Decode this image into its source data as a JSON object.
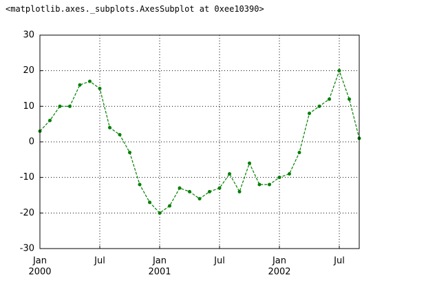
{
  "output_text": "<matplotlib.axes._subplots.AxesSubplot at 0xee10390>",
  "chart_data": {
    "type": "line",
    "x": [
      "2000-01",
      "2000-02",
      "2000-03",
      "2000-04",
      "2000-05",
      "2000-06",
      "2000-07",
      "2000-08",
      "2000-09",
      "2000-10",
      "2000-11",
      "2000-12",
      "2001-01",
      "2001-02",
      "2001-03",
      "2001-04",
      "2001-05",
      "2001-06",
      "2001-07",
      "2001-08",
      "2001-09",
      "2001-10",
      "2001-11",
      "2001-12",
      "2002-01",
      "2002-02",
      "2002-03",
      "2002-04",
      "2002-05",
      "2002-06",
      "2002-07",
      "2002-08",
      "2002-09"
    ],
    "values": [
      3,
      6,
      10,
      10,
      16,
      17,
      15,
      4,
      2,
      -3,
      -12,
      -17,
      -20,
      -18,
      -13,
      -14,
      -16,
      -14,
      -13,
      -9,
      -14,
      -6,
      -12,
      -12,
      -10,
      -9,
      -3,
      8,
      10,
      12,
      20,
      12,
      1
    ],
    "color": "#007f00",
    "xlim": [
      "2000-01",
      "2002-09"
    ],
    "xticks": [
      {
        "value": "2000-01",
        "label": "Jan",
        "year": "2000"
      },
      {
        "value": "2000-07",
        "label": "Jul"
      },
      {
        "value": "2001-01",
        "label": "Jan",
        "year": "2001"
      },
      {
        "value": "2001-07",
        "label": "Jul"
      },
      {
        "value": "2002-01",
        "label": "Jan",
        "year": "2002"
      },
      {
        "value": "2002-07",
        "label": "Jul"
      }
    ],
    "ylim": [
      -30,
      30
    ],
    "yticks": [
      -30,
      -20,
      -10,
      0,
      10,
      20,
      30
    ],
    "grid": true
  }
}
